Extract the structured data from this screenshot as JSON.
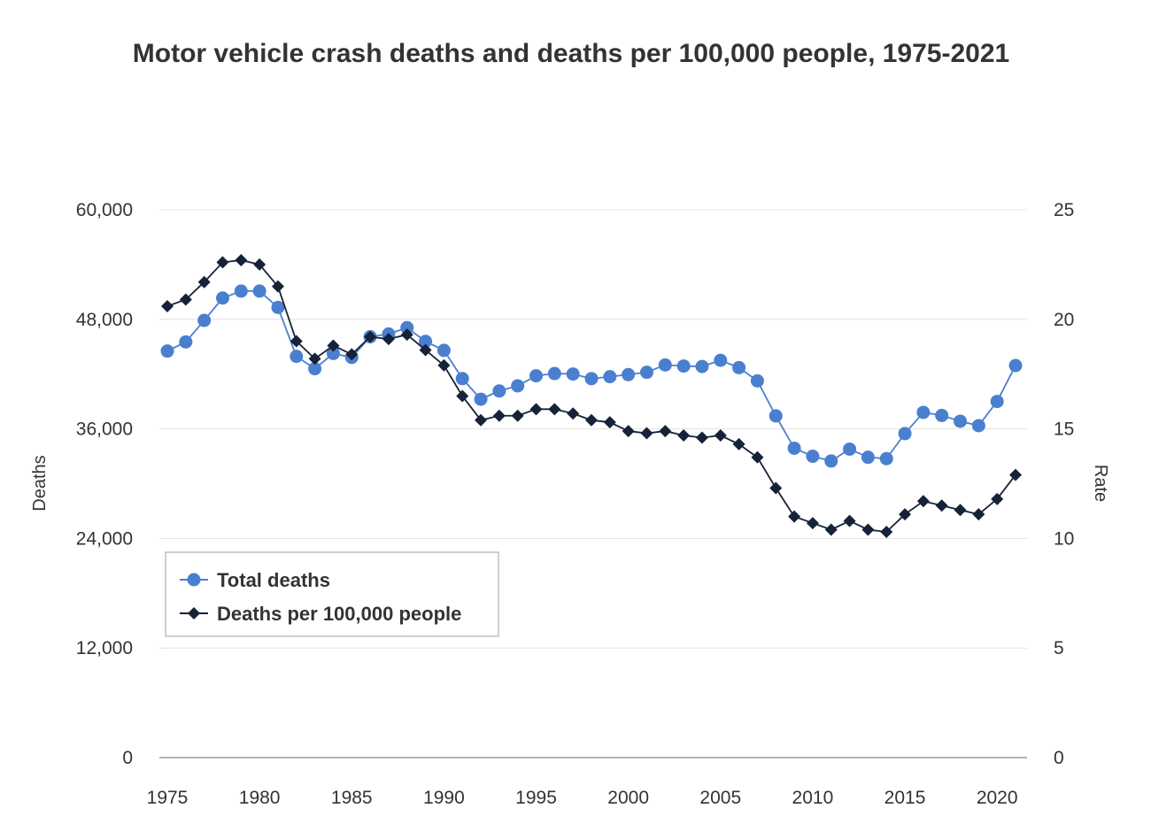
{
  "chart_data": {
    "type": "line",
    "title": "Motor vehicle crash deaths and deaths per 100,000 people, 1975-2021",
    "xlabel": "",
    "ylabel_left": "Deaths",
    "ylabel_right": "Rate",
    "ylim_left": [
      0,
      60000
    ],
    "ylim_right": [
      0,
      25
    ],
    "yticks_left": [
      "0",
      "12,000",
      "24,000",
      "36,000",
      "48,000",
      "60,000"
    ],
    "yticks_right": [
      "0",
      "5",
      "10",
      "15",
      "20",
      "25"
    ],
    "xticks": [
      "1975",
      "1980",
      "1985",
      "1990",
      "1995",
      "2000",
      "2005",
      "2010",
      "2015",
      "2020"
    ],
    "grid": true,
    "legend_position": "lower-left",
    "x": [
      1975,
      1976,
      1977,
      1978,
      1979,
      1980,
      1981,
      1982,
      1983,
      1984,
      1985,
      1986,
      1987,
      1988,
      1989,
      1990,
      1991,
      1992,
      1993,
      1994,
      1995,
      1996,
      1997,
      1998,
      1999,
      2000,
      2001,
      2002,
      2003,
      2004,
      2005,
      2006,
      2007,
      2008,
      2009,
      2010,
      2011,
      2012,
      2013,
      2014,
      2015,
      2016,
      2017,
      2018,
      2019,
      2020,
      2021
    ],
    "series": [
      {
        "name": "Total deaths",
        "axis": "left",
        "color": "#4a7fd0",
        "marker": "circle",
        "values": [
          44525,
          45523,
          47878,
          50331,
          51093,
          51091,
          49301,
          43945,
          42589,
          44257,
          43825,
          46087,
          46390,
          47087,
          45582,
          44599,
          41508,
          39250,
          40150,
          40716,
          41817,
          42065,
          42013,
          41501,
          41717,
          41945,
          42196,
          43005,
          42884,
          42836,
          43510,
          42708,
          41259,
          37423,
          33883,
          32999,
          32479,
          33782,
          32893,
          32744,
          35484,
          37806,
          37473,
          36835,
          36355,
          39007,
          42939
        ]
      },
      {
        "name": "Deaths per 100,000 people",
        "axis": "right",
        "color": "#152238",
        "marker": "diamond",
        "values": [
          20.6,
          20.9,
          21.7,
          22.6,
          22.7,
          22.5,
          21.5,
          19.0,
          18.2,
          18.8,
          18.4,
          19.2,
          19.1,
          19.3,
          18.6,
          17.9,
          16.5,
          15.4,
          15.6,
          15.6,
          15.9,
          15.9,
          15.7,
          15.4,
          15.3,
          14.9,
          14.8,
          14.9,
          14.7,
          14.6,
          14.7,
          14.3,
          13.7,
          12.3,
          11.0,
          10.7,
          10.4,
          10.8,
          10.4,
          10.3,
          11.1,
          11.7,
          11.5,
          11.3,
          11.1,
          11.8,
          12.9
        ]
      }
    ]
  }
}
